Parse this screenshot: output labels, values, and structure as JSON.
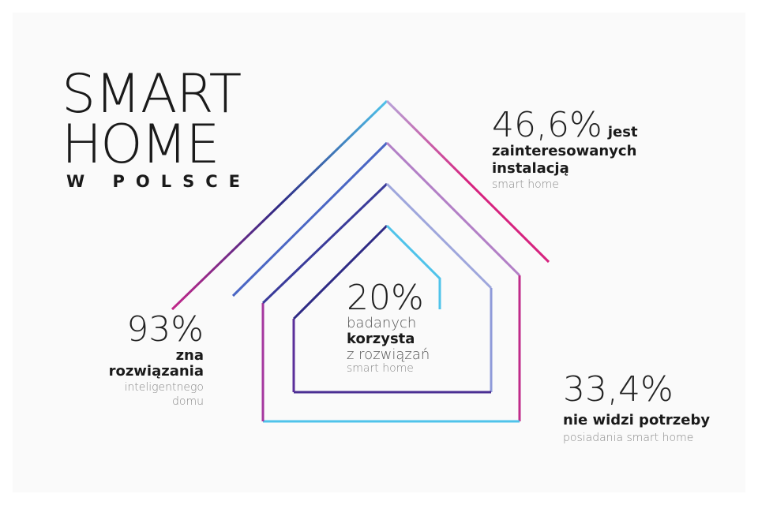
{
  "title": {
    "line1": "SMART",
    "line2": "HOME",
    "line3": "W POLSCE"
  },
  "stats": {
    "interested": {
      "percent": "46,6%",
      "bold_inline": "jest",
      "bold_line2": "zainteresowanych",
      "bold_line3": "instalacją",
      "light": "smart home"
    },
    "knows": {
      "percent": "93%",
      "bold_inline": "zna",
      "bold_line2": "rozwiązania",
      "light_line1": "inteligentnego",
      "light_line2": "domu"
    },
    "uses": {
      "percent": "20%",
      "light_line1": "badanych",
      "bold_line": "korzysta",
      "light_line2": "z rozwiązań",
      "light_small": "smart home"
    },
    "no_need": {
      "percent": "33,4%",
      "bold": "nie widzi potrzeby",
      "light": "posiadania smart home"
    }
  },
  "colors": {
    "magenta": "#d6237f",
    "purple": "#6a3fa0",
    "navy": "#2e2a84",
    "cyan": "#4fc3ea",
    "lavender": "#a89ad6"
  }
}
